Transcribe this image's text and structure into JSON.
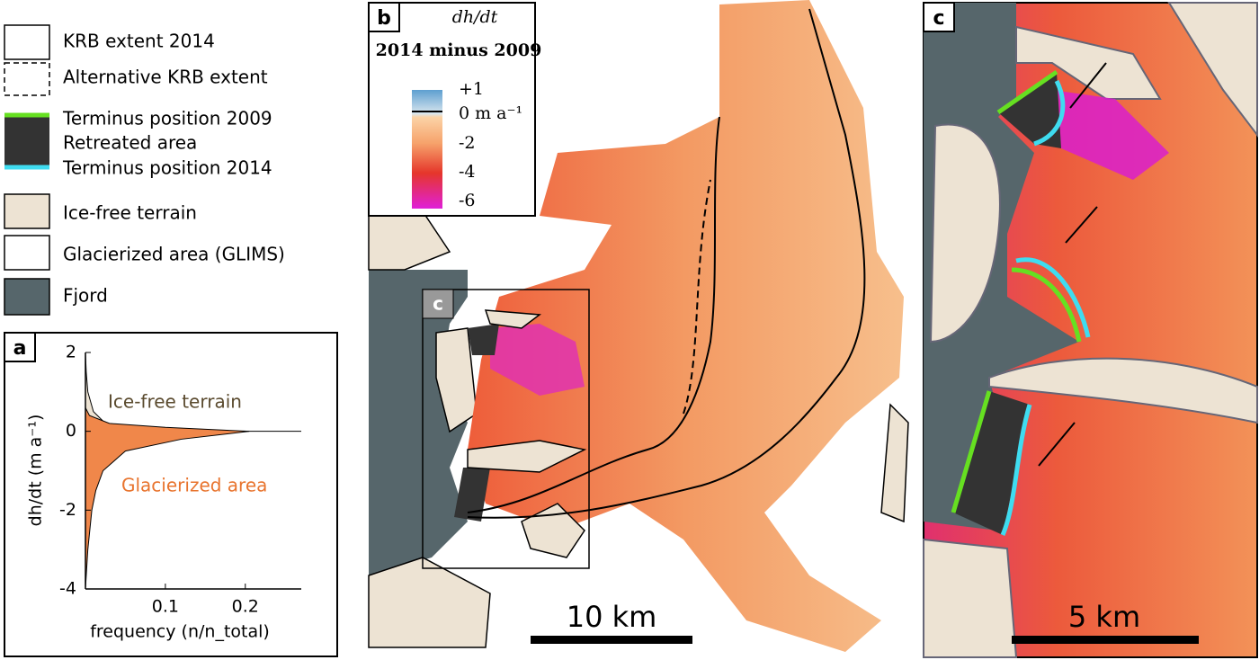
{
  "legend": {
    "items": [
      "KRB extent 2014",
      "Alternative KRB extent",
      "Terminus position 2009",
      "Retreated area",
      "Terminus position 2014",
      "Ice-free terrain",
      "Glacierized area (GLIMS)",
      "Fjord"
    ]
  },
  "panel_b": {
    "label": "b",
    "colorbar": {
      "title": "dh/dt",
      "subtitle": "2014 minus 2009",
      "ticks": [
        "+1",
        "0 m a⁻¹",
        "-2",
        "-4",
        "-6"
      ]
    },
    "inset_label": "c",
    "scale_bar": "10 km"
  },
  "panel_c": {
    "label": "c",
    "scale_bar": "5  km"
  },
  "chart_data": {
    "type": "area",
    "label": "a",
    "xlabel": "frequency (n/n_total)",
    "ylabel": "dh/dt (m a⁻¹)",
    "xlim": [
      0,
      0.27
    ],
    "ylim": [
      -4,
      2
    ],
    "xticks": [
      0.1,
      0.2
    ],
    "yticks": [
      -4,
      -2,
      0,
      2
    ],
    "series": [
      {
        "name": "Ice-free terrain",
        "color": "#ede3d3",
        "label_color": "#5a4a2e",
        "y": [
          -1,
          -0.6,
          -0.3,
          0,
          0.2,
          0.5,
          1,
          1.5,
          2
        ],
        "values": [
          0,
          0.003,
          0.01,
          0.04,
          0.025,
          0.01,
          0.003,
          0.001,
          0
        ]
      },
      {
        "name": "Glacierized area",
        "color": "#f0874a",
        "label_color": "#e8742e",
        "y": [
          -4,
          -3,
          -2,
          -1.5,
          -1,
          -0.5,
          -0.2,
          0,
          0.1,
          0.2,
          0.4,
          0.6
        ],
        "values": [
          0,
          0.003,
          0.008,
          0.013,
          0.022,
          0.05,
          0.12,
          0.205,
          0.1,
          0.03,
          0.005,
          0
        ]
      }
    ]
  }
}
